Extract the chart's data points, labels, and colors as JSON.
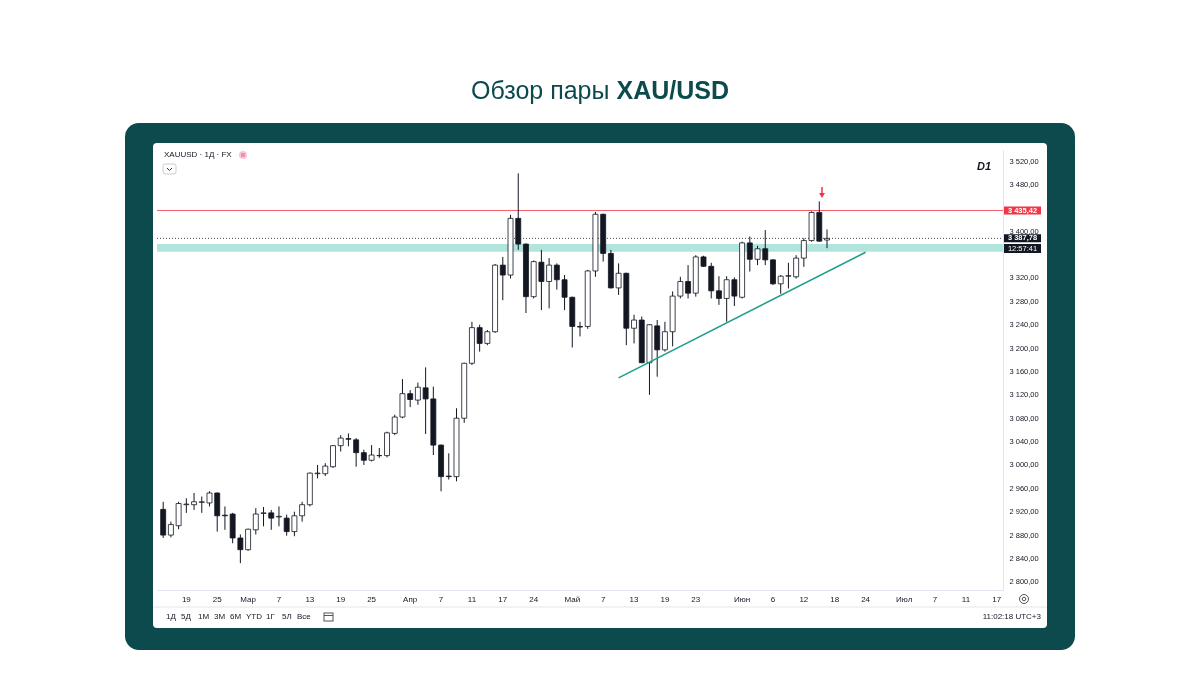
{
  "chart_data": {
    "type": "candlestick",
    "title": "Обзор пары XAU/USD",
    "categories": [
      null,
      null,
      null,
      "19",
      null,
      null,
      null,
      "25",
      null,
      null,
      null,
      "Мар",
      null,
      null,
      null,
      "7",
      null,
      null,
      null,
      "13",
      null,
      null,
      null,
      "19",
      null,
      null,
      null,
      "25",
      null,
      null,
      null,
      null,
      "Апр",
      null,
      null,
      null,
      "7",
      null,
      null,
      null,
      "11",
      null,
      null,
      null,
      "17",
      null,
      null,
      null,
      "24",
      null,
      null,
      null,
      null,
      "Май",
      null,
      null,
      null,
      "7",
      null,
      null,
      null,
      "13",
      null,
      null,
      null,
      "19",
      null,
      null,
      null,
      "23",
      null,
      null,
      null,
      null,
      null,
      "Июн",
      null,
      null,
      null,
      "6",
      null,
      null,
      null,
      "12",
      null,
      null,
      null,
      "18",
      null,
      null,
      null,
      "24",
      null,
      null,
      null,
      null,
      "Июл",
      null,
      null,
      null,
      "7",
      null,
      null,
      null,
      "11",
      null,
      null,
      null,
      "17"
    ],
    "ohlc": [
      [
        2924,
        2937,
        2875,
        2880
      ],
      [
        2880,
        2903,
        2876,
        2898
      ],
      [
        2896,
        2937,
        2890,
        2934
      ],
      [
        2932,
        2943,
        2918,
        2933
      ],
      [
        2932,
        2952,
        2923,
        2937
      ],
      [
        2936,
        2946,
        2918,
        2937
      ],
      [
        2935,
        2955,
        2929,
        2952
      ],
      [
        2952,
        2953,
        2886,
        2913
      ],
      [
        2914,
        2929,
        2889,
        2913
      ],
      [
        2916,
        2918,
        2866,
        2875
      ],
      [
        2875,
        2881,
        2832,
        2855
      ],
      [
        2855,
        2891,
        2853,
        2890
      ],
      [
        2889,
        2926,
        2881,
        2916
      ],
      [
        2917,
        2928,
        2895,
        2918
      ],
      [
        2918,
        2923,
        2889,
        2909
      ],
      [
        2911,
        2929,
        2895,
        2912
      ],
      [
        2909,
        2915,
        2879,
        2886
      ],
      [
        2886,
        2920,
        2878,
        2913
      ],
      [
        2913,
        2937,
        2903,
        2932
      ],
      [
        2932,
        2987,
        2929,
        2986
      ],
      [
        2985,
        3000,
        2977,
        2986
      ],
      [
        2985,
        3003,
        2981,
        2998
      ],
      [
        2997,
        3034,
        2995,
        3033
      ],
      [
        3033,
        3051,
        3023,
        3046
      ],
      [
        3045,
        3054,
        3032,
        3044
      ],
      [
        3043,
        3046,
        2997,
        3021
      ],
      [
        3021,
        3026,
        3000,
        3008
      ],
      [
        3008,
        3034,
        3006,
        3017
      ],
      [
        3016,
        3029,
        3012,
        3016
      ],
      [
        3016,
        3057,
        3013,
        3055
      ],
      [
        3054,
        3086,
        3051,
        3082
      ],
      [
        3082,
        3147,
        3080,
        3122
      ],
      [
        3122,
        3128,
        3099,
        3112
      ],
      [
        3111,
        3141,
        3103,
        3133
      ],
      [
        3132,
        3167,
        3053,
        3113
      ],
      [
        3113,
        3134,
        3017,
        3034
      ],
      [
        3034,
        3035,
        2955,
        2980
      ],
      [
        2981,
        3020,
        2975,
        2980
      ],
      [
        2980,
        3097,
        2972,
        3080
      ],
      [
        3080,
        3175,
        3072,
        3174
      ],
      [
        3174,
        3245,
        3171,
        3235
      ],
      [
        3235,
        3240,
        3194,
        3208
      ],
      [
        3208,
        3231,
        3205,
        3228
      ],
      [
        3228,
        3344,
        3226,
        3342
      ],
      [
        3342,
        3356,
        3282,
        3325
      ],
      [
        3325,
        3428,
        3319,
        3422
      ],
      [
        3422,
        3499,
        3368,
        3378
      ],
      [
        3378,
        3379,
        3260,
        3288
      ],
      [
        3288,
        3350,
        3285,
        3348
      ],
      [
        3347,
        3368,
        3265,
        3314
      ],
      [
        3314,
        3354,
        3268,
        3342
      ],
      [
        3342,
        3345,
        3300,
        3317
      ],
      [
        3317,
        3325,
        3265,
        3287
      ],
      [
        3287,
        3288,
        3201,
        3237
      ],
      [
        3237,
        3245,
        3220,
        3236
      ],
      [
        3237,
        3334,
        3233,
        3332
      ],
      [
        3332,
        3433,
        3322,
        3429
      ],
      [
        3429,
        3430,
        3348,
        3362
      ],
      [
        3362,
        3368,
        3302,
        3303
      ],
      [
        3303,
        3345,
        3291,
        3328
      ],
      [
        3328,
        3329,
        3205,
        3234
      ],
      [
        3234,
        3257,
        3208,
        3248
      ],
      [
        3248,
        3254,
        3174,
        3175
      ],
      [
        3175,
        3241,
        3120,
        3240
      ],
      [
        3238,
        3248,
        3151,
        3197
      ],
      [
        3197,
        3245,
        3194,
        3228
      ],
      [
        3228,
        3297,
        3203,
        3289
      ],
      [
        3289,
        3322,
        3285,
        3314
      ],
      [
        3314,
        3342,
        3285,
        3294
      ],
      [
        3294,
        3359,
        3288,
        3356
      ],
      [
        3356,
        3358,
        3339,
        3340
      ],
      [
        3340,
        3346,
        3285,
        3298
      ],
      [
        3298,
        3323,
        3274,
        3285
      ],
      [
        3285,
        3323,
        3245,
        3317
      ],
      [
        3317,
        3321,
        3272,
        3289
      ],
      [
        3287,
        3382,
        3285,
        3380
      ],
      [
        3380,
        3391,
        3331,
        3352
      ],
      [
        3352,
        3375,
        3342,
        3370
      ],
      [
        3370,
        3402,
        3342,
        3351
      ],
      [
        3351,
        3352,
        3308,
        3310
      ],
      [
        3310,
        3325,
        3293,
        3323
      ],
      [
        3323,
        3346,
        3302,
        3324
      ],
      [
        3322,
        3359,
        3319,
        3354
      ],
      [
        3354,
        3388,
        3339,
        3384
      ],
      [
        3384,
        3434,
        3382,
        3432
      ],
      [
        3432,
        3451,
        3382,
        3383
      ],
      [
        3385,
        3403,
        3371,
        3387.78
      ],
      null,
      null,
      null,
      null,
      null,
      null,
      null,
      null,
      null,
      null,
      null,
      null,
      null,
      null,
      null,
      null,
      null,
      null,
      null,
      null,
      null,
      null
    ],
    "series": [
      {
        "type": "line",
        "color": "#1e9e8c",
        "values": [
          null,
          null,
          null,
          null,
          null,
          null,
          null,
          null,
          null,
          null,
          null,
          null,
          null,
          null,
          null,
          null,
          null,
          null,
          null,
          null,
          null,
          null,
          null,
          null,
          null,
          null,
          null,
          null,
          null,
          null,
          null,
          null,
          null,
          null,
          null,
          null,
          null,
          null,
          null,
          null,
          null,
          null,
          null,
          null,
          null,
          null,
          null,
          null,
          null,
          null,
          null,
          null,
          null,
          null,
          null,
          null,
          null,
          null,
          null,
          3149,
          null,
          null,
          null,
          null,
          null,
          null,
          null,
          null,
          null,
          null,
          null,
          null,
          null,
          null,
          null,
          null,
          null,
          null,
          null,
          null,
          null,
          null,
          null,
          null,
          null,
          null,
          null,
          null,
          null,
          null,
          null,
          3364,
          null,
          null,
          null,
          null,
          null,
          null,
          null,
          null,
          null,
          null,
          null,
          null,
          null,
          null,
          null,
          null,
          null
        ]
      }
    ],
    "ylim": [
      2786,
      3539
    ],
    "yticks": [
      {
        "value": 2800,
        "label": "2 800,00"
      },
      {
        "value": 2840,
        "label": "2 840,00"
      },
      {
        "value": 2880,
        "label": "2 880,00"
      },
      {
        "value": 2920,
        "label": "2 920,00"
      },
      {
        "value": 2960,
        "label": "2 960,00"
      },
      {
        "value": 3000,
        "label": "3 000,00"
      },
      {
        "value": 3040,
        "label": "3 040,00"
      },
      {
        "value": 3080,
        "label": "3 080,00"
      },
      {
        "value": 3120,
        "label": "3 120,00"
      },
      {
        "value": 3160,
        "label": "3 160,00"
      },
      {
        "value": 3200,
        "label": "3 200,00"
      },
      {
        "value": 3240,
        "label": "3 240,00"
      },
      {
        "value": 3280,
        "label": "3 280,00"
      },
      {
        "value": 3320,
        "label": "3 320,00"
      },
      {
        "value": 3400,
        "label": "3 400,00"
      },
      {
        "value": 3480,
        "label": "3 480,00"
      },
      {
        "value": 3520,
        "label": "3 520,00"
      }
    ],
    "ref_lines": [
      {
        "axis": "y",
        "value": 3435.42,
        "label": "3 435,42",
        "color": "#f23645"
      },
      {
        "axis": "y",
        "value": 3387.78,
        "label": "3 387,78",
        "color": "#131722",
        "line_style": "dotted"
      }
    ],
    "bands": [
      {
        "axis": "y",
        "from": 3365,
        "to": 3378,
        "color": "#8fd9cf"
      }
    ],
    "annotations": [
      "XAUUSD · 1Д · FX",
      "D1",
      "1Д",
      "5Д",
      "1М",
      "3М",
      "6М",
      "YTD",
      "1Г",
      "5Л",
      "Все",
      "11:02:18 UTC+3",
      "12:57:41"
    ]
  }
}
